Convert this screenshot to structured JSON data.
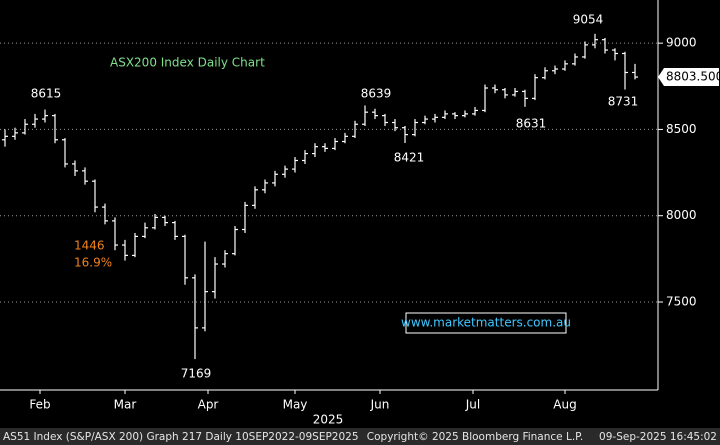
{
  "chart_data": {
    "type": "ohlc",
    "title": "ASX200 Index Daily Chart",
    "title_color": "#7fe08a",
    "drawdown_points": "1446",
    "drawdown_percent": "16.9%",
    "drawdown_color": "#f0821e",
    "watermark": "www.marketmatters.com.au",
    "annotations": [
      "8615",
      "8639",
      "8421",
      "8631",
      "9054",
      "8731",
      "7169"
    ],
    "last_price": {
      "value": 8803.5,
      "label": "8803.500"
    },
    "year_label": "2025",
    "footer_left": "AS51 Index (S&P/ASX 200) Graph 217  Daily 10SEP2022-09SEP2025",
    "footer_center": "Copyright© 2025 Bloomberg Finance L.P.",
    "footer_right": "09-Sep-2025 16:45:02",
    "color": "#ffffff",
    "grid": true,
    "xlim": [
      -0.5,
      65.3
    ],
    "xticks": [
      {
        "value": 3.5,
        "label": "Feb"
      },
      {
        "value": 12,
        "label": "Mar"
      },
      {
        "value": 20.3,
        "label": "Apr"
      },
      {
        "value": 29,
        "label": "May"
      },
      {
        "value": 37.5,
        "label": "Jun"
      },
      {
        "value": 46.8,
        "label": "Jul"
      },
      {
        "value": 56,
        "label": "Aug"
      }
    ],
    "ylim": [
      6990,
      9250
    ],
    "yticks": [
      7500,
      8000,
      8500,
      9000
    ],
    "x": [
      0,
      1,
      2,
      3,
      4,
      5,
      6,
      7,
      8,
      9,
      10,
      11,
      12,
      13,
      14,
      15,
      16,
      17,
      18,
      19,
      20,
      21,
      22,
      23,
      24,
      25,
      26,
      27,
      28,
      29,
      30,
      31,
      32,
      33,
      34,
      35,
      36,
      37,
      38,
      39,
      40,
      41,
      42,
      43,
      44,
      45,
      46,
      47,
      48,
      49,
      50,
      51,
      52,
      53,
      54,
      55,
      56,
      57,
      58,
      59,
      60,
      61,
      62,
      63
    ],
    "open": [
      8440,
      8460,
      8480,
      8530,
      8560,
      8580,
      8440,
      8300,
      8260,
      8200,
      8050,
      7970,
      7830,
      7770,
      7880,
      7930,
      7990,
      7960,
      7880,
      7640,
      7350,
      7560,
      7720,
      7780,
      7920,
      8060,
      8150,
      8190,
      8240,
      8270,
      8320,
      8360,
      8400,
      8390,
      8430,
      8460,
      8530,
      8600,
      8580,
      8540,
      8510,
      8470,
      8540,
      8560,
      8570,
      8590,
      8580,
      8590,
      8610,
      8740,
      8730,
      8700,
      8720,
      8680,
      8800,
      8840,
      8850,
      8880,
      8920,
      8990,
      9020,
      8960,
      8940,
      8830
    ],
    "high": [
      8500,
      8510,
      8560,
      8590,
      8615,
      8590,
      8450,
      8320,
      8280,
      8210,
      8070,
      7990,
      7860,
      7900,
      7960,
      8010,
      8000,
      7970,
      7890,
      7660,
      7850,
      7760,
      7800,
      7940,
      8080,
      8170,
      8210,
      8260,
      8290,
      8340,
      8380,
      8420,
      8420,
      8450,
      8480,
      8550,
      8639,
      8620,
      8590,
      8560,
      8520,
      8560,
      8580,
      8590,
      8610,
      8600,
      8610,
      8630,
      8760,
      8760,
      8740,
      8740,
      8730,
      8820,
      8860,
      8870,
      8900,
      8940,
      9010,
      9054,
      9030,
      8970,
      8950,
      8880
    ],
    "low": [
      8400,
      8440,
      8470,
      8510,
      8540,
      8420,
      8280,
      8230,
      8180,
      8020,
      7950,
      7800,
      7740,
      7760,
      7870,
      7920,
      7940,
      7860,
      7600,
      7169,
      7330,
      7520,
      7700,
      7770,
      7900,
      8040,
      8130,
      8170,
      8220,
      8250,
      8300,
      8340,
      8370,
      8380,
      8420,
      8450,
      8520,
      8560,
      8520,
      8490,
      8421,
      8460,
      8530,
      8540,
      8560,
      8560,
      8570,
      8580,
      8600,
      8710,
      8680,
      8690,
      8631,
      8670,
      8790,
      8820,
      8840,
      8870,
      8910,
      8970,
      8940,
      8900,
      8731,
      8790
    ],
    "close": [
      8460,
      8480,
      8530,
      8560,
      8580,
      8440,
      8300,
      8260,
      8200,
      8050,
      7970,
      7830,
      7770,
      7880,
      7930,
      7990,
      7960,
      7880,
      7640,
      7350,
      7560,
      7720,
      7780,
      7920,
      8060,
      8150,
      8190,
      8240,
      8270,
      8320,
      8360,
      8400,
      8390,
      8430,
      8460,
      8530,
      8600,
      8580,
      8540,
      8510,
      8470,
      8540,
      8560,
      8570,
      8590,
      8580,
      8590,
      8610,
      8740,
      8730,
      8700,
      8720,
      8680,
      8800,
      8840,
      8850,
      8880,
      8920,
      8990,
      9020,
      8960,
      8940,
      8830,
      8803.5
    ]
  }
}
